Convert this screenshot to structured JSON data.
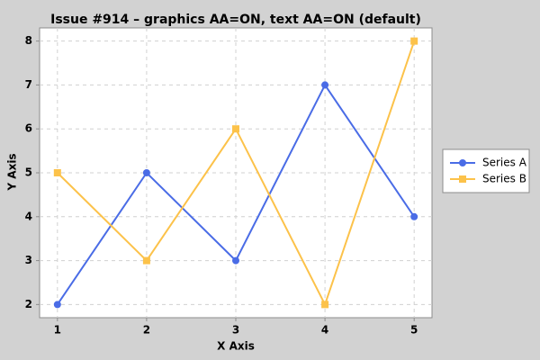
{
  "chart_data": {
    "type": "line",
    "title": "Issue #914 – graphics AA=ON, text AA=ON (default)",
    "x_label": "X Axis",
    "y_label": "Y Axis",
    "x": [
      1,
      2,
      3,
      4,
      5
    ],
    "series": [
      {
        "name": "Series A",
        "color": "#4a6ce6",
        "marker": "circle",
        "values": [
          2,
          5,
          3,
          7,
          4
        ]
      },
      {
        "name": "Series B",
        "color": "#fcc24a",
        "marker": "square",
        "values": [
          5,
          3,
          6,
          2,
          8
        ]
      }
    ],
    "xlim": [
      0.8,
      5.2
    ],
    "xticks": [
      1,
      2,
      3,
      4,
      5
    ],
    "ylim": [
      1.7,
      8.3
    ],
    "yticks": [
      2,
      3,
      4,
      5,
      6,
      7,
      8
    ],
    "grid": true,
    "legend": "right"
  }
}
